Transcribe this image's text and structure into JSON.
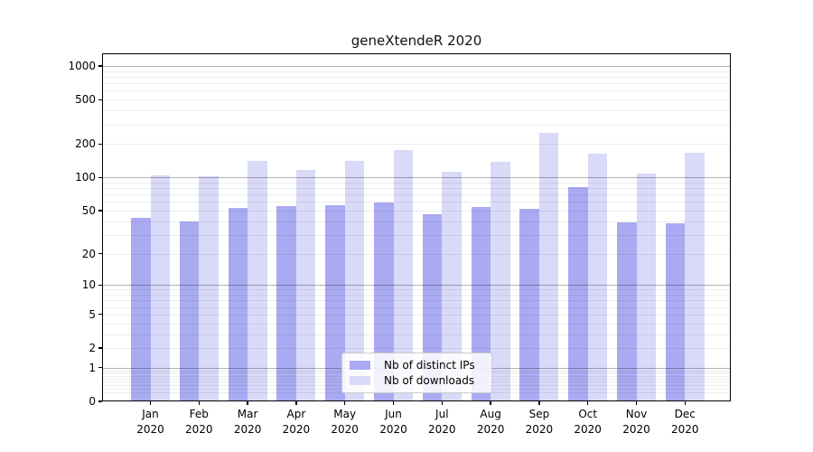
{
  "chart_data": {
    "type": "bar",
    "title": "geneXtendeR 2020",
    "categories": [
      "Jan",
      "Feb",
      "Mar",
      "Apr",
      "May",
      "Jun",
      "Jul",
      "Aug",
      "Sep",
      "Oct",
      "Nov",
      "Dec"
    ],
    "x_year_label": "2020",
    "series": [
      {
        "name": "Nb of distinct IPs",
        "color": "#aaaaf2",
        "values": [
          43,
          40,
          53,
          55,
          56,
          59,
          46,
          54,
          52,
          81,
          39,
          38
        ]
      },
      {
        "name": "Nb of downloads",
        "color": "#d9d9f8",
        "values": [
          105,
          103,
          141,
          116,
          141,
          176,
          112,
          137,
          254,
          163,
          108,
          166
        ]
      }
    ],
    "yscale": "log(x+1)",
    "y_tick_values": [
      0,
      1,
      2,
      5,
      10,
      20,
      50,
      100,
      200,
      500,
      1000
    ],
    "y_tick_labels": [
      "0",
      "1",
      "2",
      "5",
      "10",
      "20",
      "50",
      "100",
      "200",
      "500",
      "1000"
    ],
    "ylim": [
      0,
      1300
    ],
    "grid": "both",
    "grid_major_at": [
      1,
      10,
      100,
      1000
    ],
    "legend_position": "lower center"
  }
}
